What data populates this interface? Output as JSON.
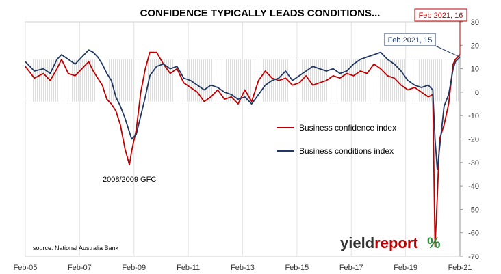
{
  "chart_data": {
    "type": "line",
    "title": "CONFIDENCE TYPICALLY LEADS CONDITIONS...",
    "x_tick_labels": [
      "Feb-05",
      "Feb-07",
      "Feb-09",
      "Feb-11",
      "Feb-13",
      "Feb-15",
      "Feb-17",
      "Feb-19",
      "Feb-21"
    ],
    "x_range": [
      "2005-02",
      "2021-02"
    ],
    "y_ticks": [
      30,
      20,
      10,
      0,
      -10,
      -20,
      -30,
      -40,
      -50,
      -60,
      -70
    ],
    "ylim": [
      -70,
      30
    ],
    "y_axis_side": "right",
    "grid": "vertical",
    "legend_position": "center-right",
    "shaded_band": [
      -4,
      14
    ],
    "series": [
      {
        "name": "Business confidence index",
        "color": "#c00000",
        "points": [
          [
            "2005-02",
            11
          ],
          [
            "2005-06",
            6
          ],
          [
            "2005-10",
            8
          ],
          [
            "2006-01",
            5
          ],
          [
            "2006-04",
            10
          ],
          [
            "2006-06",
            14
          ],
          [
            "2006-09",
            8
          ],
          [
            "2006-12",
            7
          ],
          [
            "2007-03",
            10
          ],
          [
            "2007-06",
            13
          ],
          [
            "2007-08",
            9
          ],
          [
            "2007-10",
            6
          ],
          [
            "2007-12",
            3
          ],
          [
            "2008-02",
            -3
          ],
          [
            "2008-04",
            -5
          ],
          [
            "2008-06",
            -8
          ],
          [
            "2008-08",
            -14
          ],
          [
            "2008-10",
            -24
          ],
          [
            "2008-12",
            -31
          ],
          [
            "2009-01",
            -25
          ],
          [
            "2009-03",
            -16
          ],
          [
            "2009-05",
            0
          ],
          [
            "2009-07",
            10
          ],
          [
            "2009-09",
            17
          ],
          [
            "2009-12",
            17
          ],
          [
            "2010-03",
            12
          ],
          [
            "2010-06",
            8
          ],
          [
            "2010-09",
            10
          ],
          [
            "2010-12",
            4
          ],
          [
            "2011-03",
            2
          ],
          [
            "2011-06",
            0
          ],
          [
            "2011-09",
            -4
          ],
          [
            "2011-12",
            -2
          ],
          [
            "2012-03",
            1
          ],
          [
            "2012-06",
            -3
          ],
          [
            "2012-09",
            -2
          ],
          [
            "2012-12",
            -5
          ],
          [
            "2013-03",
            1
          ],
          [
            "2013-06",
            -4
          ],
          [
            "2013-09",
            5
          ],
          [
            "2013-12",
            9
          ],
          [
            "2014-03",
            6
          ],
          [
            "2014-06",
            5
          ],
          [
            "2014-09",
            6
          ],
          [
            "2014-12",
            3
          ],
          [
            "2015-03",
            4
          ],
          [
            "2015-06",
            7
          ],
          [
            "2015-09",
            3
          ],
          [
            "2015-12",
            4
          ],
          [
            "2016-03",
            5
          ],
          [
            "2016-06",
            7
          ],
          [
            "2016-09",
            6
          ],
          [
            "2016-12",
            8
          ],
          [
            "2017-03",
            7
          ],
          [
            "2017-06",
            9
          ],
          [
            "2017-09",
            8
          ],
          [
            "2017-12",
            12
          ],
          [
            "2018-03",
            10
          ],
          [
            "2018-06",
            7
          ],
          [
            "2018-09",
            6
          ],
          [
            "2018-12",
            3
          ],
          [
            "2019-03",
            1
          ],
          [
            "2019-06",
            2
          ],
          [
            "2019-09",
            0
          ],
          [
            "2019-12",
            -2
          ],
          [
            "2020-02",
            -1
          ],
          [
            "2020-03",
            -66
          ],
          [
            "2020-04",
            -45
          ],
          [
            "2020-05",
            -20
          ],
          [
            "2020-07",
            -14
          ],
          [
            "2020-09",
            -5
          ],
          [
            "2020-11",
            12
          ],
          [
            "2020-12",
            14
          ],
          [
            "2021-02",
            16
          ]
        ]
      },
      {
        "name": "Business conditions index",
        "color": "#1f3864",
        "points": [
          [
            "2005-02",
            13
          ],
          [
            "2005-06",
            9
          ],
          [
            "2005-10",
            10
          ],
          [
            "2006-01",
            8
          ],
          [
            "2006-04",
            14
          ],
          [
            "2006-06",
            16
          ],
          [
            "2006-09",
            14
          ],
          [
            "2006-12",
            12
          ],
          [
            "2007-03",
            15
          ],
          [
            "2007-06",
            18
          ],
          [
            "2007-08",
            17
          ],
          [
            "2007-10",
            15
          ],
          [
            "2007-12",
            12
          ],
          [
            "2008-02",
            8
          ],
          [
            "2008-04",
            5
          ],
          [
            "2008-06",
            -2
          ],
          [
            "2008-08",
            -6
          ],
          [
            "2008-10",
            -11
          ],
          [
            "2008-12",
            -17
          ],
          [
            "2009-01",
            -20
          ],
          [
            "2009-03",
            -18
          ],
          [
            "2009-05",
            -10
          ],
          [
            "2009-07",
            -2
          ],
          [
            "2009-09",
            7
          ],
          [
            "2009-12",
            11
          ],
          [
            "2010-03",
            12
          ],
          [
            "2010-06",
            10
          ],
          [
            "2010-09",
            11
          ],
          [
            "2010-12",
            6
          ],
          [
            "2011-03",
            5
          ],
          [
            "2011-06",
            3
          ],
          [
            "2011-09",
            1
          ],
          [
            "2011-12",
            3
          ],
          [
            "2012-03",
            2
          ],
          [
            "2012-06",
            0
          ],
          [
            "2012-09",
            -1
          ],
          [
            "2012-12",
            -3
          ],
          [
            "2013-03",
            -2
          ],
          [
            "2013-06",
            -5
          ],
          [
            "2013-09",
            -1
          ],
          [
            "2013-12",
            3
          ],
          [
            "2014-03",
            5
          ],
          [
            "2014-06",
            6
          ],
          [
            "2014-09",
            9
          ],
          [
            "2014-12",
            5
          ],
          [
            "2015-03",
            7
          ],
          [
            "2015-06",
            9
          ],
          [
            "2015-09",
            11
          ],
          [
            "2015-12",
            10
          ],
          [
            "2016-03",
            9
          ],
          [
            "2016-06",
            10
          ],
          [
            "2016-09",
            8
          ],
          [
            "2016-12",
            9
          ],
          [
            "2017-03",
            12
          ],
          [
            "2017-06",
            14
          ],
          [
            "2017-09",
            15
          ],
          [
            "2017-12",
            16
          ],
          [
            "2018-03",
            17
          ],
          [
            "2018-06",
            14
          ],
          [
            "2018-09",
            12
          ],
          [
            "2018-12",
            9
          ],
          [
            "2019-03",
            5
          ],
          [
            "2019-06",
            3
          ],
          [
            "2019-09",
            2
          ],
          [
            "2019-12",
            3
          ],
          [
            "2020-02",
            1
          ],
          [
            "2020-03",
            -20
          ],
          [
            "2020-04",
            -33
          ],
          [
            "2020-05",
            -24
          ],
          [
            "2020-07",
            -6
          ],
          [
            "2020-09",
            -1
          ],
          [
            "2020-11",
            10
          ],
          [
            "2020-12",
            13
          ],
          [
            "2021-02",
            15
          ]
        ]
      }
    ],
    "annotations": [
      {
        "text": "2008/2009 GFC",
        "date": "2008-12",
        "value": -37
      }
    ],
    "callouts": [
      {
        "text": "Feb 2021, 16",
        "color": "#c00000",
        "date": "2021-02",
        "value": 16
      },
      {
        "text": "Feb 2021, 15",
        "color": "#1f3864",
        "date": "2021-02",
        "value": 15
      }
    ],
    "source": "source: National Australia Bank"
  },
  "branding": {
    "part1": "yield",
    "part2": "report",
    "symbol": "%",
    "color_dark": "#333333",
    "color_accent": "#c00000",
    "color_green": "#2e8b3a"
  }
}
